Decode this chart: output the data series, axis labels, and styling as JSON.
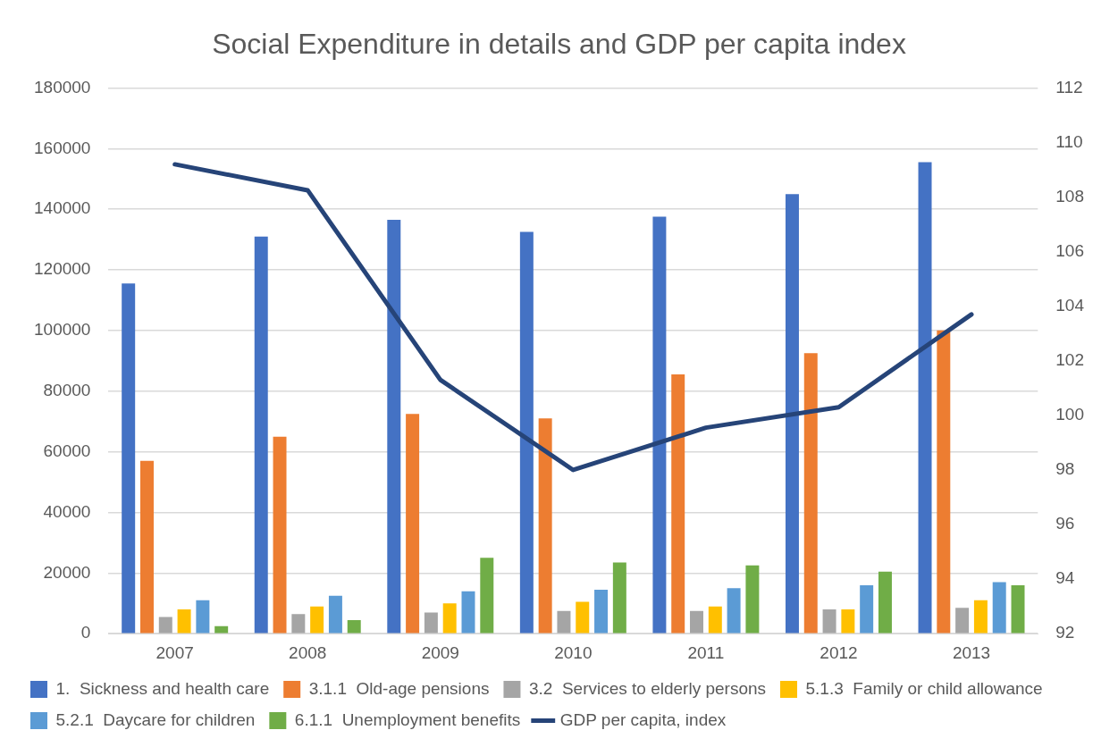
{
  "chart_data": {
    "type": "bar",
    "title": "Social Expenditure in details and GDP per capita index",
    "categories": [
      "2007",
      "2008",
      "2009",
      "2010",
      "2011",
      "2012",
      "2013"
    ],
    "series": [
      {
        "name": "1.  Sickness and health care",
        "color": "#4472c4",
        "values": [
          115500,
          131000,
          136500,
          132500,
          137500,
          145000,
          155500
        ]
      },
      {
        "name": "3.1.1  Old-age pensions",
        "color": "#ed7d31",
        "values": [
          57000,
          65000,
          72500,
          71000,
          85500,
          92500,
          100000
        ]
      },
      {
        "name": "3.2  Services to elderly persons",
        "color": "#a5a5a5",
        "values": [
          5500,
          6500,
          7000,
          7500,
          7500,
          8000,
          8500
        ]
      },
      {
        "name": "5.1.3  Family or child allowance",
        "color": "#ffc000",
        "values": [
          8000,
          9000,
          10000,
          10500,
          9000,
          8000,
          11000
        ]
      },
      {
        "name": "5.2.1  Daycare for children",
        "color": "#5b9bd5",
        "values": [
          11000,
          12500,
          14000,
          14500,
          15000,
          16000,
          17000
        ]
      },
      {
        "name": "6.1.1  Unemployment benefits",
        "color": "#70ad47",
        "values": [
          2500,
          4500,
          25000,
          23500,
          22500,
          20500,
          16000
        ]
      },
      {
        "name": "GDP per capita, index",
        "type": "line",
        "axis": "y2",
        "color": "#264478",
        "marker": "none",
        "values": [
          109.2,
          108.25,
          101.3,
          98.0,
          99.55,
          100.3,
          103.7
        ]
      }
    ],
    "ylim": [
      0,
      180000
    ],
    "yticks": [
      0,
      20000,
      40000,
      60000,
      80000,
      100000,
      120000,
      140000,
      160000,
      180000
    ],
    "y2lim": [
      92,
      112
    ],
    "y2ticks": [
      92,
      94,
      96,
      98,
      100,
      102,
      104,
      106,
      108,
      110,
      112
    ],
    "grid": "y",
    "legend": "bottom"
  }
}
